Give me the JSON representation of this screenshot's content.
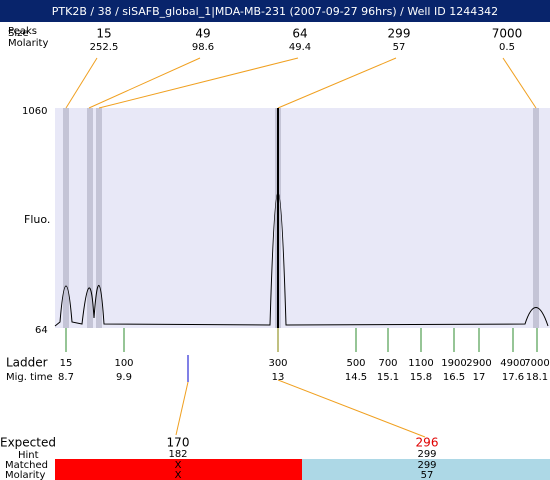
{
  "header": {
    "title": "PTK2B / 38 / siSAFB_global_1|MDA-MB-231 (2007-09-27 96hrs) / Well ID 1244342"
  },
  "peaks_labels": {
    "peaks": "Peaks",
    "size": "Size",
    "molarity": "Molarity"
  },
  "peaks": [
    {
      "size": 15,
      "molarity": 252.5
    },
    {
      "size": 49,
      "molarity": 98.6
    },
    {
      "size": 64,
      "molarity": 49.4
    },
    {
      "size": 299,
      "molarity": 57
    },
    {
      "size": 7000,
      "molarity": 0.5
    }
  ],
  "plot": {
    "y_label": "Fluo.",
    "y_top": 1060,
    "y_bottom": 64
  },
  "ladder_labels": {
    "ladder": "Ladder",
    "mig_time": "Mig. time"
  },
  "ladder": [
    {
      "size": 15,
      "time": 8.7
    },
    {
      "size": 100,
      "time": 9.9
    },
    {
      "size": 300,
      "time": 13
    },
    {
      "size": 500,
      "time": 14.5
    },
    {
      "size": 700,
      "time": 15.1
    },
    {
      "size": 1100,
      "time": 15.8
    },
    {
      "size": 1900,
      "time": 16.5
    },
    {
      "size": 2900,
      "time": 17
    },
    {
      "size": 4900,
      "time": 17.6
    },
    {
      "size": 7000,
      "time": 18.1
    }
  ],
  "expected_labels": {
    "expected": "Expected",
    "hint": "Hint",
    "matched": "Matched",
    "molarity": "Molarity"
  },
  "expected": [
    {
      "expected": 170,
      "hint": 182,
      "matched": "X",
      "molarity": "X"
    },
    {
      "expected": 296,
      "hint": 299,
      "matched": 299,
      "molarity": 57
    }
  ]
}
